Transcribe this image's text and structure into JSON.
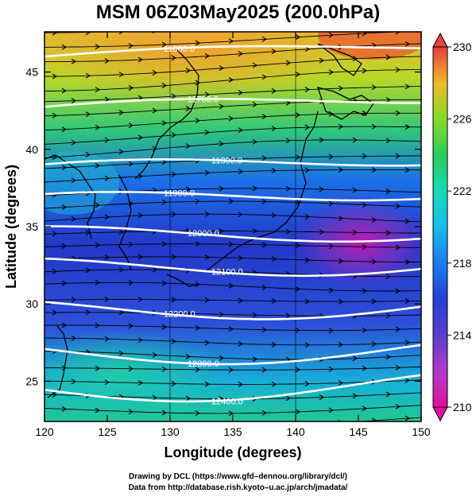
{
  "title": "MSM 06Z03May2025 (200.0hPa)",
  "x_axis": {
    "label": "Longitude (degrees)",
    "range": [
      120,
      150
    ],
    "ticks": [
      "120",
      "125",
      "130",
      "135",
      "140",
      "145",
      "150"
    ]
  },
  "y_axis": {
    "label": "Latitude  (degrees)",
    "range": [
      22.4,
      47.6
    ],
    "ticks": [
      "25",
      "30",
      "35",
      "40",
      "45"
    ]
  },
  "colorbar": {
    "range": [
      210,
      230
    ],
    "ticks": [
      "210",
      "214",
      "218",
      "222",
      "226",
      "230"
    ],
    "colors": [
      "#e0109a",
      "#b03cc8",
      "#5a3ccc",
      "#2440d8",
      "#1c7cf0",
      "#18bce8",
      "#18d8b8",
      "#28cc5a",
      "#88dc28",
      "#ccdc18",
      "#ecbc28",
      "#f07838",
      "#e83c3c"
    ]
  },
  "contours": [
    {
      "label": "11600.0",
      "lat": 46.0
    },
    {
      "label": "11700.0",
      "lat": 42.6
    },
    {
      "label": "11800.0",
      "lat": 38.7
    },
    {
      "label": "11900.0",
      "lat": 36.6
    },
    {
      "label": "12000.0",
      "lat": 34.4
    },
    {
      "label": "12100.0",
      "lat": 32.3
    },
    {
      "label": "12200.0",
      "lat": 29.6
    },
    {
      "label": "12300.0",
      "lat": 26.8
    },
    {
      "label": "12400.0",
      "lat": 24.5
    }
  ],
  "credits": {
    "line1": "Drawing by DCL (https://www.gfd–dennou.org/library/dcl/)",
    "line2": "Data from http://database.rish.kyoto–u.ac.jp/arch/jmadata/"
  }
}
